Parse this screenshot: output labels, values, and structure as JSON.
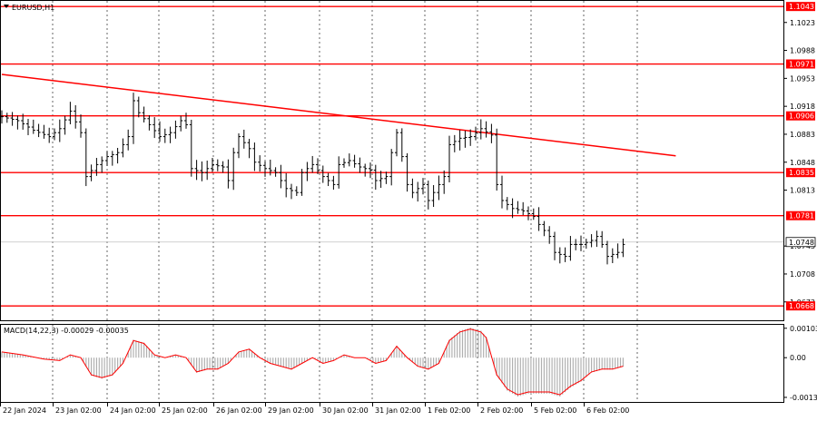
{
  "chart_data": [
    {
      "type": "candlestick",
      "title": "EURUSD,H1",
      "ylim": [
        1.065,
        1.105
      ],
      "x_ticks": [
        "22 Jan 2024",
        "23 Jan 02:00",
        "24 Jan 02:00",
        "25 Jan 02:00",
        "26 Jan 02:00",
        "29 Jan 02:00",
        "30 Jan 02:00",
        "31 Jan 02:00",
        "1 Feb 02:00",
        "2 Feb 02:00",
        "5 Feb 02:00",
        "6 Feb 02:00"
      ],
      "y_ticks": [
        "1.1023",
        "1.0988",
        "1.0953",
        "1.0918",
        "1.0883",
        "1.0848",
        "1.0813",
        "1.0743",
        "1.0708",
        "1.0673"
      ],
      "y_tick_values": [
        1.1023,
        1.0988,
        1.0953,
        1.0918,
        1.0883,
        1.0848,
        1.0813,
        1.0743,
        1.0708,
        1.0673
      ],
      "levels": [
        {
          "label": "1.1043",
          "value": 1.1043
        },
        {
          "label": "1.0971",
          "value": 1.0971
        },
        {
          "label": "1.0906",
          "value": 1.0906
        },
        {
          "label": "1.0835",
          "value": 1.0835
        },
        {
          "label": "1.0781",
          "value": 1.0781
        },
        {
          "label": "1.0668",
          "value": 1.0668
        }
      ],
      "current_price": {
        "label": "1.0748",
        "value": 1.0748
      },
      "trend_line": {
        "start": {
          "time_index": 0,
          "value": 1.0958
        },
        "end": {
          "time_index": 128,
          "value": 1.0856
        }
      },
      "close_path": [
        [
          0,
          1.0905
        ],
        [
          3,
          1.09
        ],
        [
          6,
          1.0888
        ],
        [
          9,
          1.088
        ],
        [
          11,
          1.089
        ],
        [
          13,
          1.0912
        ],
        [
          15,
          1.0885
        ],
        [
          16,
          1.083
        ],
        [
          18,
          1.0845
        ],
        [
          20,
          1.0855
        ],
        [
          22,
          1.086
        ],
        [
          24,
          1.088
        ],
        [
          25,
          1.0925
        ],
        [
          26,
          1.091
        ],
        [
          28,
          1.0895
        ],
        [
          30,
          1.088
        ],
        [
          32,
          1.0885
        ],
        [
          34,
          1.09
        ],
        [
          35,
          1.0895
        ],
        [
          36,
          1.084
        ],
        [
          38,
          1.0835
        ],
        [
          40,
          1.0845
        ],
        [
          42,
          1.0842
        ],
        [
          43,
          1.0825
        ],
        [
          44,
          1.086
        ],
        [
          45,
          1.088
        ],
        [
          47,
          1.0865
        ],
        [
          48,
          1.0848
        ],
        [
          50,
          1.084
        ],
        [
          52,
          1.0835
        ],
        [
          54,
          1.0815
        ],
        [
          56,
          1.081
        ],
        [
          57,
          1.0835
        ],
        [
          59,
          1.0845
        ],
        [
          61,
          1.083
        ],
        [
          63,
          1.082
        ],
        [
          64,
          1.0845
        ],
        [
          66,
          1.085
        ],
        [
          68,
          1.0842
        ],
        [
          70,
          1.0838
        ],
        [
          71,
          1.0825
        ],
        [
          73,
          1.083
        ],
        [
          74,
          1.086
        ],
        [
          75,
          1.0885
        ],
        [
          76,
          1.0855
        ],
        [
          77,
          1.082
        ],
        [
          78,
          1.081
        ],
        [
          80,
          1.082
        ],
        [
          81,
          1.08
        ],
        [
          82,
          1.081
        ],
        [
          84,
          1.083
        ],
        [
          85,
          1.087
        ],
        [
          87,
          1.0878
        ],
        [
          89,
          1.088
        ],
        [
          91,
          1.089
        ],
        [
          93,
          1.0882
        ],
        [
          94,
          1.082
        ],
        [
          95,
          1.08
        ],
        [
          97,
          1.079
        ],
        [
          99,
          1.0787
        ],
        [
          101,
          1.078
        ],
        [
          102,
          1.077
        ],
        [
          104,
          1.0755
        ],
        [
          105,
          1.0735
        ],
        [
          107,
          1.073
        ],
        [
          108,
          1.0745
        ],
        [
          110,
          1.0745
        ],
        [
          112,
          1.075
        ],
        [
          113,
          1.0755
        ],
        [
          114,
          1.0745
        ],
        [
          115,
          1.073
        ],
        [
          117,
          1.0735
        ],
        [
          118,
          1.0745
        ]
      ]
    },
    {
      "type": "macd",
      "title": "MACD(14,22,3) -0.00029 -0.00035",
      "ylim": [
        -0.00155,
        0.00115
      ],
      "y_ticks": [
        "0.00103",
        "0.00",
        "-0.00139"
      ],
      "y_tick_values": [
        0.00103,
        0.0,
        -0.00139
      ],
      "signal_path": [
        [
          0,
          0.0002
        ],
        [
          4,
          0.0001
        ],
        [
          8,
          -5e-05
        ],
        [
          11,
          -0.0001
        ],
        [
          13,
          0.0001
        ],
        [
          15,
          0.0
        ],
        [
          17,
          -0.0006
        ],
        [
          19,
          -0.0007
        ],
        [
          21,
          -0.0006
        ],
        [
          23,
          -0.0002
        ],
        [
          25,
          0.0006
        ],
        [
          27,
          0.0005
        ],
        [
          29,
          0.0001
        ],
        [
          31,
          0.0
        ],
        [
          33,
          0.0001
        ],
        [
          35,
          0.0
        ],
        [
          37,
          -0.0005
        ],
        [
          39,
          -0.0004
        ],
        [
          41,
          -0.0004
        ],
        [
          43,
          -0.0002
        ],
        [
          45,
          0.0002
        ],
        [
          47,
          0.0003
        ],
        [
          49,
          0.0
        ],
        [
          51,
          -0.0002
        ],
        [
          53,
          -0.0003
        ],
        [
          55,
          -0.0004
        ],
        [
          57,
          -0.0002
        ],
        [
          59,
          0.0
        ],
        [
          61,
          -0.0002
        ],
        [
          63,
          -0.0001
        ],
        [
          65,
          0.0001
        ],
        [
          67,
          0.0
        ],
        [
          69,
          0.0
        ],
        [
          71,
          -0.0002
        ],
        [
          73,
          -0.0001
        ],
        [
          75,
          0.0004
        ],
        [
          77,
          0.0
        ],
        [
          79,
          -0.0003
        ],
        [
          81,
          -0.0004
        ],
        [
          83,
          -0.0002
        ],
        [
          85,
          0.0006
        ],
        [
          87,
          0.0009
        ],
        [
          89,
          0.001
        ],
        [
          91,
          0.0009
        ],
        [
          92,
          0.0007
        ],
        [
          94,
          -0.0006
        ],
        [
          96,
          -0.0011
        ],
        [
          98,
          -0.0013
        ],
        [
          100,
          -0.0012
        ],
        [
          102,
          -0.0012
        ],
        [
          104,
          -0.0012
        ],
        [
          106,
          -0.0013
        ],
        [
          108,
          -0.001
        ],
        [
          110,
          -0.0008
        ],
        [
          112,
          -0.0005
        ],
        [
          114,
          -0.0004
        ],
        [
          116,
          -0.0004
        ],
        [
          118,
          -0.0003
        ]
      ]
    }
  ]
}
